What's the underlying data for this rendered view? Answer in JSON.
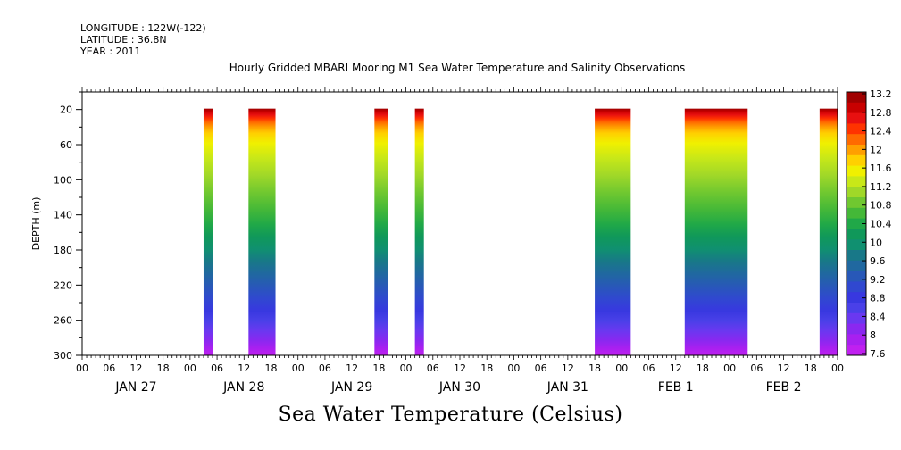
{
  "meta": {
    "longitude": "LONGITUDE : 122W(-122)",
    "latitude": "LATITUDE : 36.8N",
    "year": "YEAR : 2011"
  },
  "title": "Hourly Gridded MBARI Mooring M1 Sea Water Temperature and Salinity Observations",
  "bottom_title": "Sea Water Temperature (Celsius)",
  "chart_data": {
    "type": "heatmap",
    "ylabel": "DEPTH (m)",
    "ylim": [
      300,
      0
    ],
    "yticks": [
      20,
      60,
      100,
      140,
      180,
      220,
      260,
      300
    ],
    "x_hour_ticks": [
      "00",
      "06",
      "12",
      "18",
      "00",
      "06",
      "12",
      "18",
      "00",
      "06",
      "12",
      "18",
      "00",
      "06",
      "12",
      "18",
      "00",
      "06",
      "12",
      "18",
      "00",
      "06",
      "12",
      "18",
      "00",
      "06",
      "12",
      "18",
      "00"
    ],
    "x_day_labels": [
      "JAN 27",
      "JAN 28",
      "JAN 29",
      "JAN 30",
      "JAN 31",
      "FEB  1",
      "FEB  2"
    ],
    "colorbar": {
      "labels": [
        "13.2",
        "12.8",
        "12.4",
        "12",
        "11.6",
        "11.2",
        "10.8",
        "10.4",
        "10",
        "9.6",
        "9.2",
        "8.8",
        "8.4",
        "8",
        "7.6"
      ],
      "colors": [
        "#a00000",
        "#c80000",
        "#e81010",
        "#ff3300",
        "#ff6a00",
        "#ff9f00",
        "#ffd000",
        "#f0f000",
        "#c8e818",
        "#a0d828",
        "#70c830",
        "#44b838",
        "#20a848",
        "#10985a",
        "#109070",
        "#187888",
        "#2068a0",
        "#2858b8",
        "#3048d0",
        "#3838e0",
        "#4a40e8",
        "#6a38f0",
        "#8a28f0",
        "#a820f0",
        "#c020f0"
      ]
    },
    "observation_blocks": [
      {
        "start": "JAN 28 03",
        "end": "JAN 28 05"
      },
      {
        "start": "JAN 28 13",
        "end": "JAN 28 19"
      },
      {
        "start": "JAN 29 17",
        "end": "JAN 29 20"
      },
      {
        "start": "JAN 30 02",
        "end": "JAN 30 04"
      },
      {
        "start": "JAN 31 18",
        "end": "FEB 1 02"
      },
      {
        "start": "FEB 1 14",
        "end": "FEB 2 04"
      },
      {
        "start": "FEB 2 20",
        "end": "FEB 3 00"
      }
    ]
  }
}
